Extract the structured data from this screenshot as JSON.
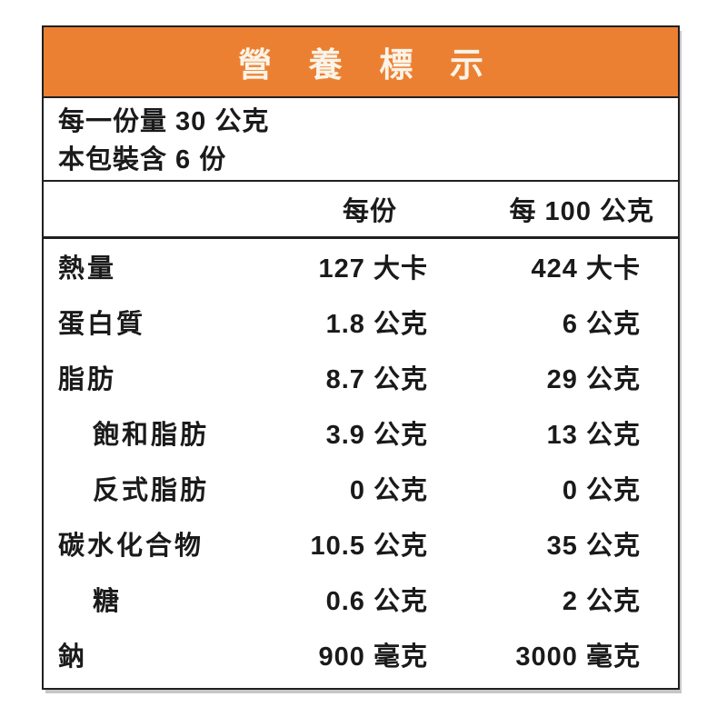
{
  "title": "營養標示",
  "serving_info": {
    "line1": "每一份量 30 公克",
    "line2": "本包裝含 6 份"
  },
  "columns": {
    "per_serving": "每份",
    "per_100g": "每 100 公克"
  },
  "rows": [
    {
      "label": "熱量",
      "per_serving": "127 大卡",
      "per_100g": "424 大卡"
    },
    {
      "label": "蛋白質",
      "per_serving": "1.8 公克",
      "per_100g": "6 公克"
    },
    {
      "label": "脂肪",
      "per_serving": "8.7 公克",
      "per_100g": "29 公克"
    },
    {
      "label": "飽和脂肪",
      "per_serving": "3.9 公克",
      "per_100g": "13 公克"
    },
    {
      "label": "反式脂肪",
      "per_serving": "0 公克",
      "per_100g": "0 公克"
    },
    {
      "label": "碳水化合物",
      "per_serving": "10.5 公克",
      "per_100g": "35 公克"
    },
    {
      "label": "糖",
      "per_serving": "0.6 公克",
      "per_100g": "2 公克"
    },
    {
      "label": "鈉",
      "per_serving": "900 毫克",
      "per_100g": "3000 毫克"
    }
  ],
  "colors": {
    "header_bg": "#ec8032",
    "border": "#1f1f1f",
    "title_text": "#faf4e8",
    "body_text": "#1a1a1a"
  }
}
